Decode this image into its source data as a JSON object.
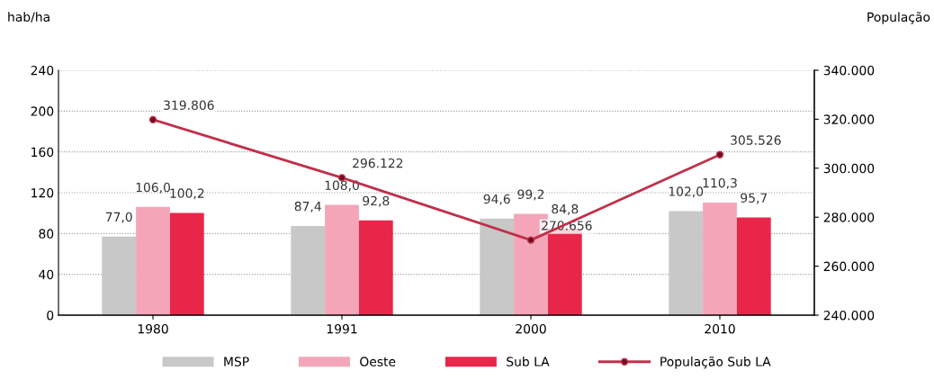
{
  "chart_data": {
    "type": "bar",
    "ylabel": "hab/ha",
    "y2label": "População",
    "categories": [
      "1980",
      "1991",
      "2000",
      "2010"
    ],
    "series": [
      {
        "name": "MSP",
        "color": "#c8c8c8",
        "values": [
          77.0,
          87.4,
          94.6,
          102.0
        ],
        "value_labels": [
          "77,0",
          "87,4",
          "94,6",
          "102,0"
        ]
      },
      {
        "name": "Oeste",
        "color": "#f4a6b8",
        "values": [
          106.0,
          108.0,
          99.2,
          110.3
        ],
        "value_labels": [
          "106,0",
          "108,0",
          "99,2",
          "110,3"
        ]
      },
      {
        "name": "Sub LA",
        "color": "#e8264a",
        "values": [
          100.2,
          92.8,
          84.8,
          95.7
        ],
        "value_labels": [
          "100,2",
          "92,8",
          "84,8",
          "95,7"
        ]
      },
      {
        "name": "População Sub LA",
        "type": "line",
        "axis": "y2",
        "color": "#c0304a",
        "marker": "circle",
        "values": [
          319806,
          296122,
          270656,
          305526
        ],
        "value_labels": [
          "319.806",
          "296.122",
          "270.656",
          "305.526"
        ]
      }
    ],
    "ylim": [
      0,
      240
    ],
    "yticks": [
      0,
      40,
      80,
      120,
      160,
      200,
      240
    ],
    "y2lim": [
      240000,
      340000
    ],
    "y2ticks": [
      {
        "value": 240000,
        "label": "240.000"
      },
      {
        "value": 260000,
        "label": "260.000"
      },
      {
        "value": 280000,
        "label": "280.000"
      },
      {
        "value": 300000,
        "label": "300.000"
      },
      {
        "value": 320000,
        "label": "320.000"
      },
      {
        "value": 340000,
        "label": "340.000"
      }
    ],
    "grid": "y",
    "legend": "bottom"
  }
}
